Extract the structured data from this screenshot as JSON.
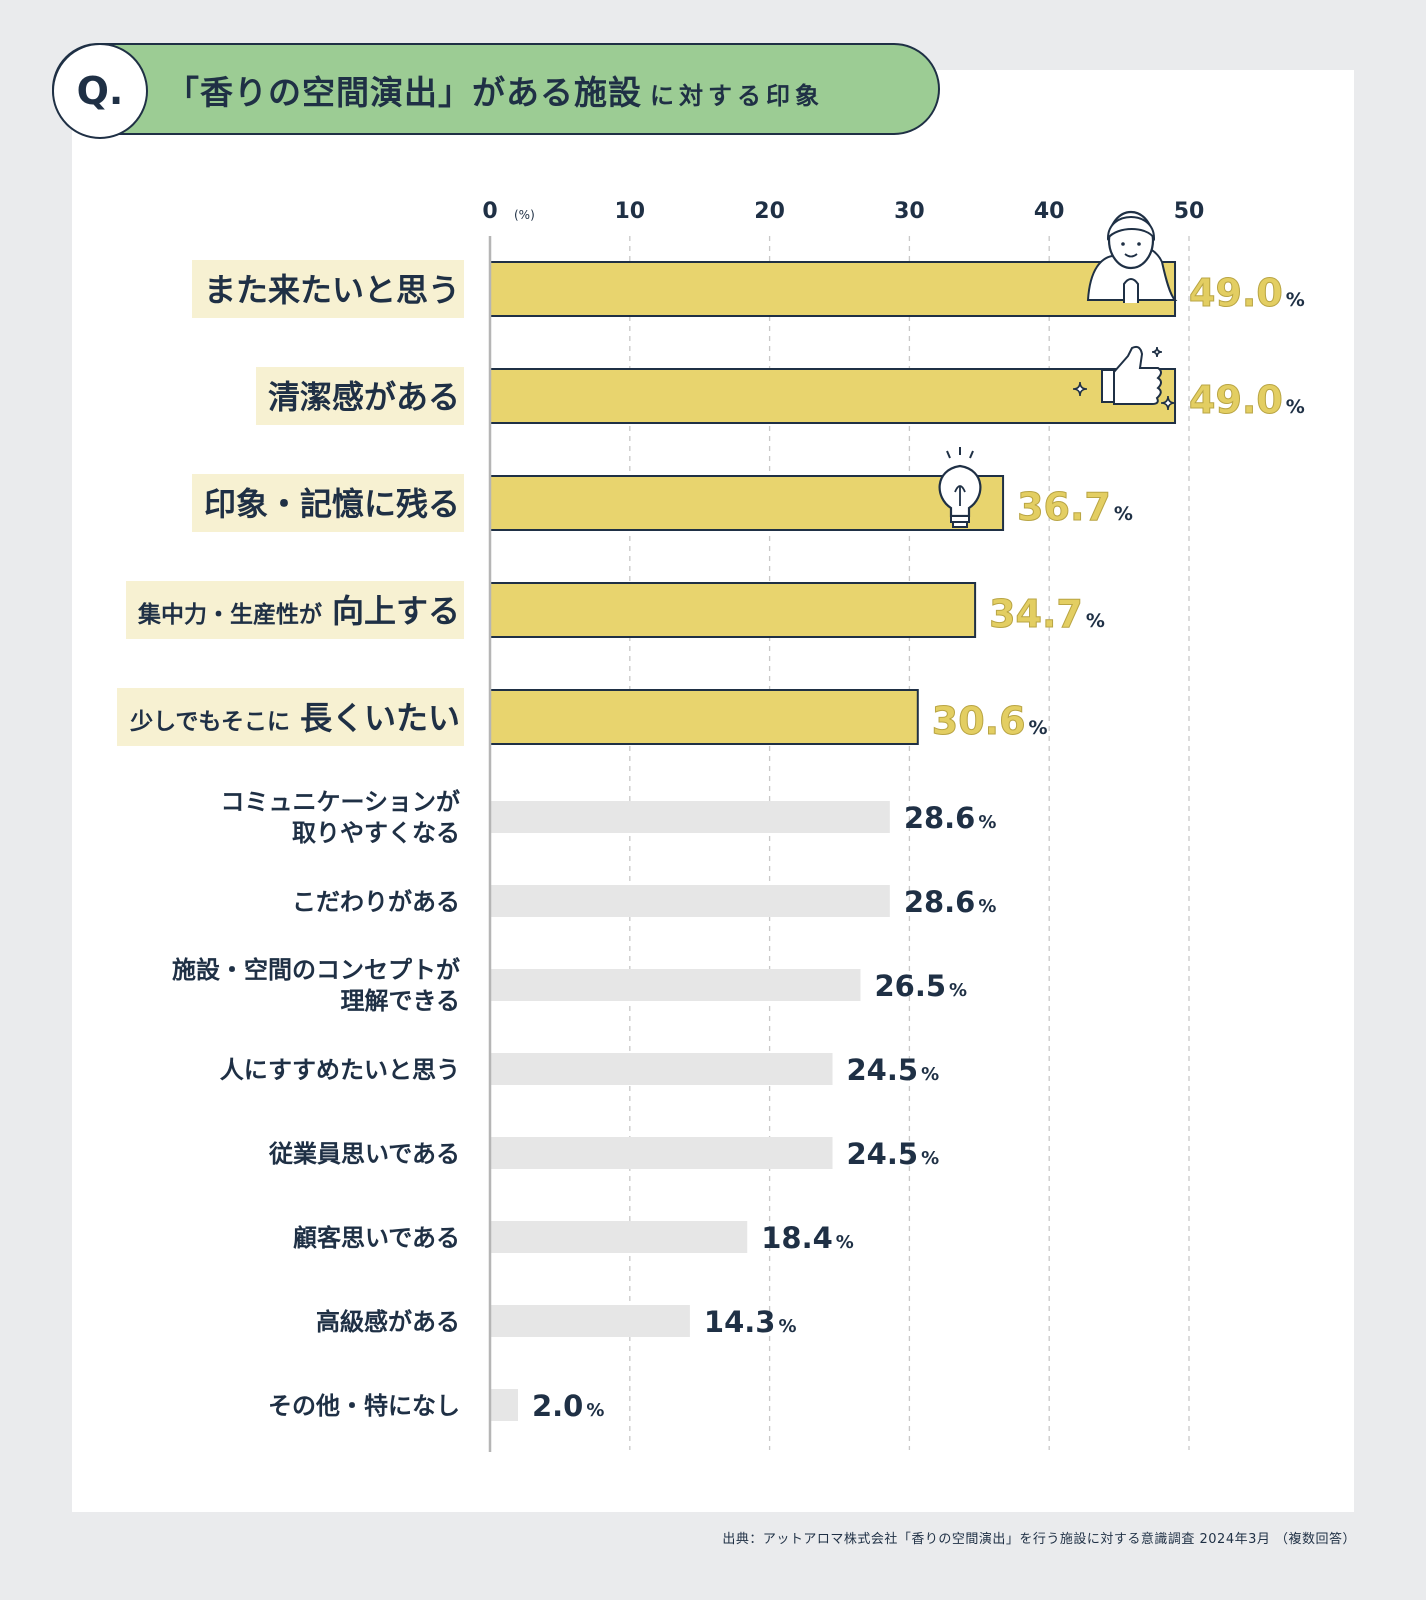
{
  "title": {
    "q_label": "Q.",
    "main": "「香りの空間演出」がある施設",
    "sub": "に対する印象"
  },
  "source": "出典：アットアロマ株式会社「香りの空間演出」を行う施設に対する意識調査 2024年3月 （複数回答）",
  "colors": {
    "background": "#eaebed",
    "highlight_bar": "#e8d46e",
    "highlight_label_bg": "#f7f1d2",
    "highlight_value": "#e3ce62",
    "other_bar": "#e6e6e6",
    "text": "#1f3045",
    "title_pill": "#9ccc94"
  },
  "chart_data": {
    "type": "bar",
    "orientation": "horizontal",
    "unit": "%",
    "x_unit_label": "(%)",
    "xlim": [
      0,
      50
    ],
    "xticks": [
      0,
      10,
      20,
      30,
      40,
      50
    ],
    "grid": true,
    "categories": [
      "また来たいと思う",
      "清潔感がある",
      "印象・記憶に残る",
      "集中力・生産性が向上する",
      "少しでもそこに長くいたい",
      "コミュニケーションが取りやすくなる",
      "こだわりがある",
      "施設・空間のコンセプトが理解できる",
      "人にすすめたいと思う",
      "従業員思いである",
      "顧客思いである",
      "高級感がある",
      "その他・特になし"
    ],
    "values": [
      49.0,
      49.0,
      36.7,
      34.7,
      30.6,
      28.6,
      28.6,
      26.5,
      24.5,
      24.5,
      18.4,
      14.3,
      2.0
    ],
    "value_labels": [
      "49.0",
      "49.0",
      "36.7",
      "34.7",
      "30.6",
      "28.6",
      "28.6",
      "26.5",
      "24.5",
      "24.5",
      "18.4",
      "14.3",
      "2.0"
    ],
    "highlighted": [
      true,
      true,
      true,
      true,
      true,
      false,
      false,
      false,
      false,
      false,
      false,
      false,
      false
    ],
    "label_lines": [
      [
        "また来たいと思う"
      ],
      [
        "清潔感がある"
      ],
      [
        "印象・記憶に残る"
      ],
      [
        "集中力・生産性が",
        "向上する"
      ],
      [
        "少しでもそこに",
        "長くいたい"
      ],
      [
        "コミュニケーションが",
        "取りやすくなる"
      ],
      [
        "こだわりがある"
      ],
      [
        "施設・空間のコンセプトが",
        "理解できる"
      ],
      [
        "人にすすめたいと思う"
      ],
      [
        "従業員思いである"
      ],
      [
        "顧客思いである"
      ],
      [
        "高級感がある"
      ],
      [
        "その他・特になし"
      ]
    ],
    "icons": [
      "woman-praying-icon",
      "thumbs-up-icon",
      "lightbulb-icon"
    ]
  }
}
